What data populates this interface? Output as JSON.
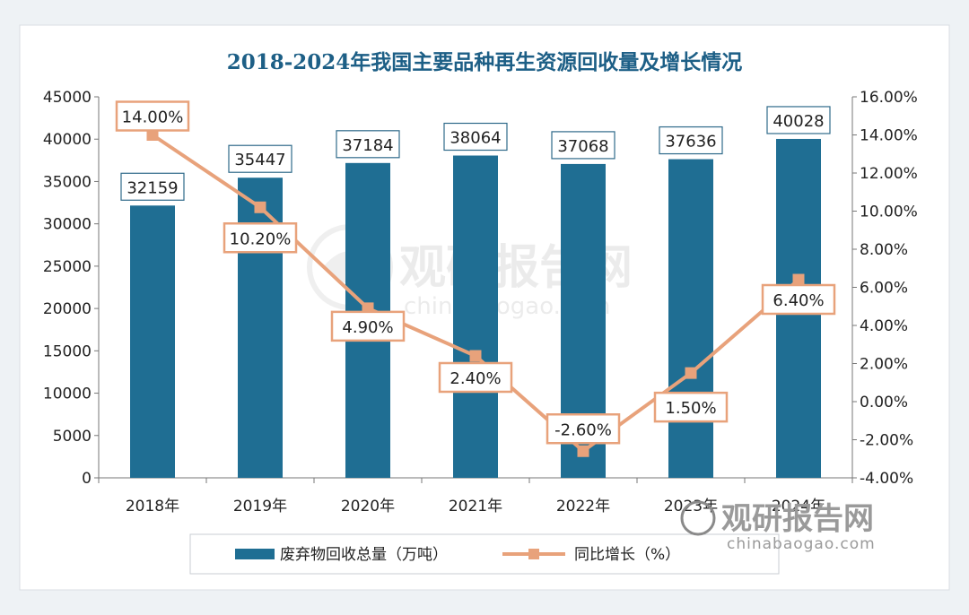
{
  "chart_data": {
    "type": "bar+line",
    "title": "2018-2024年我国主要品种再生资源回收量及增长情况",
    "categories": [
      "2018年",
      "2019年",
      "2020年",
      "2021年",
      "2022年",
      "2023年",
      "2024年"
    ],
    "series": [
      {
        "name": "废弃物回收总量（万吨）",
        "type": "bar",
        "axis": "left",
        "values": [
          32159,
          35447,
          37184,
          38064,
          37068,
          37636,
          40028
        ],
        "labels": [
          "32159",
          "35447",
          "37184",
          "38064",
          "37068",
          "37636",
          "40028"
        ]
      },
      {
        "name": "同比增长（%）",
        "type": "line",
        "axis": "right",
        "values": [
          14.0,
          10.2,
          4.9,
          2.4,
          -2.6,
          1.5,
          6.4
        ],
        "labels": [
          "14.00%",
          "10.20%",
          "4.90%",
          "2.40%",
          "-2.60%",
          "1.50%",
          "6.40%"
        ]
      }
    ],
    "y_left": {
      "min": 0,
      "max": 45000,
      "ticks": [
        "0",
        "5000",
        "10000",
        "15000",
        "20000",
        "25000",
        "30000",
        "35000",
        "40000",
        "45000"
      ]
    },
    "y_right": {
      "min": -4,
      "max": 16,
      "ticks": [
        "-4.00%",
        "-2.00%",
        "0.00%",
        "2.00%",
        "4.00%",
        "6.00%",
        "8.00%",
        "10.00%",
        "12.00%",
        "14.00%",
        "16.00%"
      ]
    },
    "legend": {
      "position": "bottom",
      "bar_label": "废弃物回收总量（万吨）",
      "line_label": "同比增长（%）"
    },
    "grid": false
  },
  "watermark": {
    "brand": "观研报告网",
    "site": "chinabaogao.com"
  },
  "colors": {
    "bar": "#1f6e93",
    "line": "#e8a27b",
    "title": "#1d5f86",
    "label_border_bar": "#2f6a8a",
    "label_border_line": "#e8a27b"
  }
}
